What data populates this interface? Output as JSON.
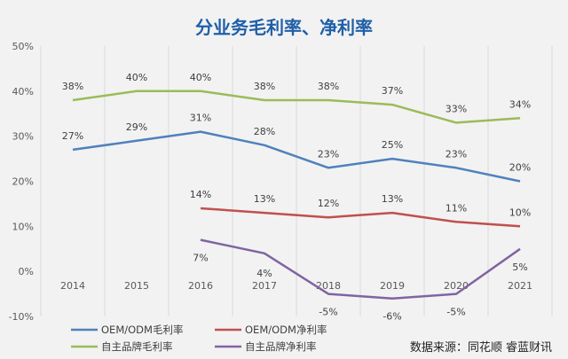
{
  "chart_data": {
    "type": "line",
    "title": "分业务毛利率、净利率",
    "x": [
      "2014",
      "2015",
      "2016",
      "2017",
      "2018",
      "2019",
      "2020",
      "2021"
    ],
    "y_ticks": [
      "50%",
      "40%",
      "30%",
      "20%",
      "10%",
      "0%",
      "-10%"
    ],
    "ylim": [
      -10,
      50
    ],
    "unit": "%",
    "grid": "vertical",
    "legend_position": "bottom-left",
    "series": [
      {
        "name": "OEM/ODM毛利率",
        "color": "#4f81bd",
        "values": [
          27,
          29,
          31,
          28,
          23,
          25,
          23,
          20
        ],
        "labels": [
          "27%",
          "",
          "31%",
          "28%",
          "23%",
          "25%",
          "23%",
          "20%"
        ]
      },
      {
        "name": "OEM/ODM净利率",
        "color": "#c0504d",
        "values": [
          null,
          null,
          14,
          13,
          12,
          13,
          11,
          10
        ],
        "labels": [
          "",
          "",
          "14%",
          "13%",
          "12%",
          "13%",
          "11%",
          "10%"
        ]
      },
      {
        "name": "自主品牌毛利率",
        "color": "#9bbb59",
        "values": [
          38,
          40,
          40,
          38,
          38,
          37,
          33,
          34
        ],
        "labels": [
          "38%",
          "40%",
          "40%",
          "38%",
          "38%",
          "37%",
          "33%",
          "34%"
        ]
      },
      {
        "name": "自主品牌净利率",
        "color": "#8064a2",
        "values": [
          null,
          null,
          7,
          4,
          -5,
          -6,
          -5,
          5
        ],
        "labels": [
          "",
          "",
          "7%",
          "4%",
          "-5%",
          "-6%",
          "-5%",
          "5%"
        ]
      }
    ],
    "extra_labels": [
      {
        "text": "29%",
        "x": "2015",
        "y": 29
      }
    ],
    "source": "数据来源：同花顺  睿蓝财讯"
  }
}
